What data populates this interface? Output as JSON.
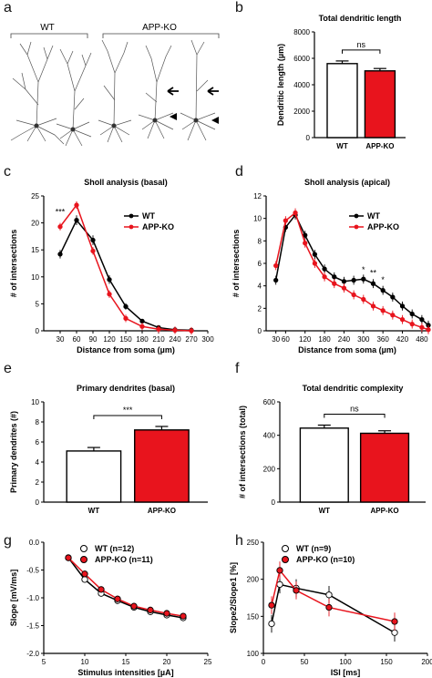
{
  "panel_labels": [
    "a",
    "b",
    "c",
    "d",
    "e",
    "f",
    "g",
    "h"
  ],
  "micrographs": {
    "wt_label": "WT",
    "ko_label": "APP-KO"
  },
  "colors": {
    "wt": "#000000",
    "ko": "#e8141d",
    "wt_bar_fill": "#ffffff",
    "ko_bar_fill": "#e8141d"
  },
  "chart_data": [
    {
      "id": "b",
      "type": "bar",
      "title": "Total dendritic length",
      "ylabel": "Dendritic length (µm)",
      "categories": [
        "WT",
        "APP-KO"
      ],
      "values": [
        5600,
        5050
      ],
      "errors": [
        200,
        180
      ],
      "ylim": [
        0,
        8000
      ],
      "yticks": [
        0,
        2000,
        4000,
        6000,
        8000
      ],
      "significance": "ns"
    },
    {
      "id": "c",
      "type": "line",
      "title": "Sholl analysis (basal)",
      "xlabel": "Distance from soma (µm)",
      "ylabel": "# of intersections",
      "xlim": [
        0,
        300
      ],
      "ylim": [
        0,
        25
      ],
      "xticks": [
        30,
        60,
        90,
        120,
        150,
        180,
        210,
        240,
        270,
        300
      ],
      "yticks": [
        0,
        5,
        10,
        15,
        20,
        25
      ],
      "legend": [
        "WT",
        "APP-KO"
      ],
      "series": [
        {
          "name": "WT",
          "x": [
            30,
            60,
            90,
            120,
            150,
            180,
            210,
            240,
            270
          ],
          "y": [
            14.2,
            20.5,
            16.8,
            9.5,
            4.5,
            1.8,
            0.6,
            0.2,
            0.1
          ],
          "err": [
            0.8,
            0.9,
            0.9,
            0.8,
            0.6,
            0.4,
            0.2,
            0.1,
            0.1
          ]
        },
        {
          "name": "APP-KO",
          "x": [
            30,
            60,
            90,
            120,
            150,
            180,
            210,
            240,
            270
          ],
          "y": [
            19.3,
            23.3,
            14.8,
            6.8,
            2.3,
            0.8,
            0.3,
            0.1,
            0
          ]
        },
        {
          "name": "annotation",
          "x": [
            30
          ],
          "y": [
            21.5
          ],
          "label": "***"
        }
      ]
    },
    {
      "id": "d",
      "type": "line",
      "title": "Sholl analysis (apical)",
      "xlabel": "Distance from soma (µm)",
      "ylabel": "# of intersections",
      "xlim": [
        0,
        500
      ],
      "ylim": [
        0,
        12
      ],
      "xticks": [
        30,
        60,
        120,
        180,
        240,
        300,
        360,
        420,
        480
      ],
      "yticks": [
        0,
        2,
        4,
        6,
        8,
        10,
        12
      ],
      "legend": [
        "WT",
        "APP-KO"
      ],
      "series": [
        {
          "name": "WT",
          "x": [
            30,
            60,
            90,
            120,
            150,
            180,
            210,
            240,
            270,
            300,
            330,
            360,
            390,
            420,
            450,
            480,
            500
          ],
          "y": [
            4.5,
            9.2,
            10.3,
            8.5,
            6.8,
            5.5,
            4.8,
            4.4,
            4.5,
            4.6,
            4.2,
            3.6,
            3.0,
            2.2,
            1.5,
            1.0,
            0.5
          ]
        },
        {
          "name": "APP-KO",
          "x": [
            30,
            60,
            90,
            120,
            150,
            180,
            210,
            240,
            270,
            300,
            330,
            360,
            390,
            420,
            450,
            480,
            500
          ],
          "y": [
            5.8,
            9.8,
            10.5,
            7.8,
            6.0,
            4.8,
            4.2,
            3.8,
            3.2,
            2.8,
            2.2,
            1.8,
            1.4,
            1.0,
            0.6,
            0.3,
            0.1
          ]
        },
        {
          "name": "annotation",
          "x": [
            300,
            330,
            360
          ],
          "y": [
            5.2,
            4.9,
            4.3
          ],
          "labels": [
            "*",
            "**",
            "*"
          ]
        }
      ]
    },
    {
      "id": "e",
      "type": "bar",
      "title": "Primary dendrites (basal)",
      "ylabel": "Primary dendrites (#)",
      "categories": [
        "WT",
        "APP-KO"
      ],
      "values": [
        5.1,
        7.2
      ],
      "errors": [
        0.35,
        0.35
      ],
      "ylim": [
        0,
        10
      ],
      "yticks": [
        0,
        2,
        4,
        6,
        8,
        10
      ],
      "significance": "***"
    },
    {
      "id": "f",
      "type": "bar",
      "title": "Total dendritic complexity",
      "ylabel": "# of intersections (total)",
      "categories": [
        "WT",
        "APP-KO"
      ],
      "values": [
        443,
        412
      ],
      "errors": [
        18,
        15
      ],
      "ylim": [
        0,
        600
      ],
      "yticks": [
        0,
        200,
        400,
        600
      ],
      "significance": "ns"
    },
    {
      "id": "g",
      "type": "line",
      "xlabel": "Stimulus intensities [µA]",
      "ylabel": "Slope [mV/ms]",
      "xlim": [
        5,
        25
      ],
      "ylim": [
        -2.0,
        0.0
      ],
      "xticks": [
        5,
        10,
        15,
        20,
        25
      ],
      "yticks": [
        0.0,
        -0.5,
        -1.0,
        -1.5,
        -2.0
      ],
      "legend": [
        "WT (n=12)",
        "APP-KO (n=11)"
      ],
      "series": [
        {
          "name": "WT (n=12)",
          "x": [
            8,
            10,
            12,
            14,
            16,
            18,
            20,
            22
          ],
          "y": [
            -0.28,
            -0.67,
            -0.92,
            -1.05,
            -1.17,
            -1.25,
            -1.31,
            -1.36
          ]
        },
        {
          "name": "APP-KO (n=11)",
          "x": [
            8,
            10,
            12,
            14,
            16,
            18,
            20,
            22
          ],
          "y": [
            -0.28,
            -0.57,
            -0.85,
            -1.02,
            -1.15,
            -1.22,
            -1.28,
            -1.33
          ]
        }
      ]
    },
    {
      "id": "h",
      "type": "line",
      "xlabel": "ISI [ms]",
      "ylabel": "Slope2/Slope1 [%]",
      "xlim": [
        0,
        200
      ],
      "ylim": [
        100,
        250
      ],
      "xticks": [
        0,
        50,
        100,
        150,
        200
      ],
      "yticks": [
        100,
        150,
        200,
        250
      ],
      "legend": [
        "WT (n=9)",
        "APP-KO (n=10)"
      ],
      "series": [
        {
          "name": "WT (n=9)",
          "x": [
            10,
            20,
            40,
            80,
            160
          ],
          "y": [
            140,
            193,
            188,
            179,
            128
          ]
        },
        {
          "name": "APP-KO (n=10)",
          "x": [
            10,
            20,
            40,
            80,
            160
          ],
          "y": [
            165,
            212,
            185,
            162,
            143
          ]
        }
      ]
    }
  ]
}
